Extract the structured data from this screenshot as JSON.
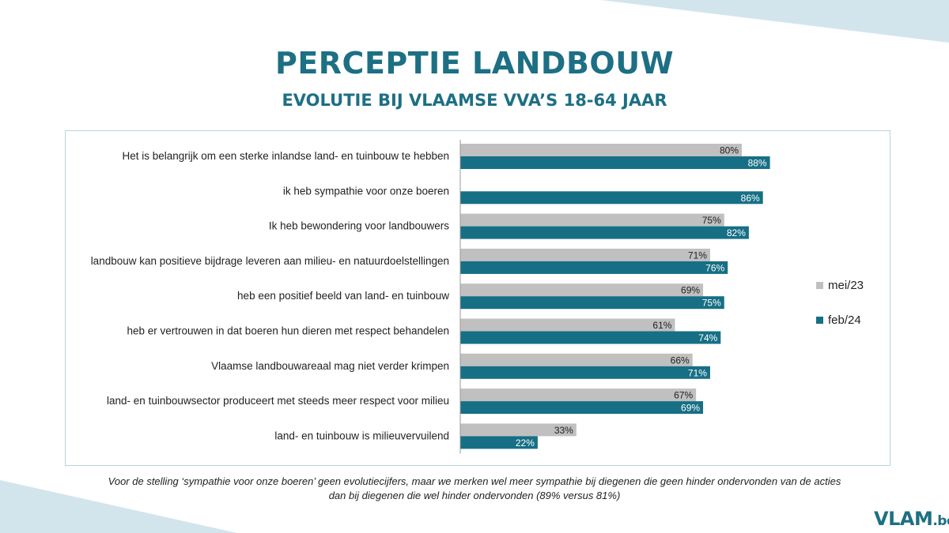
{
  "header": {
    "title": "PERCEPTIE LANDBOUW",
    "subtitle": "EVOLUTIE BIJ VLAAMSE VVA’S 18-64 JAAR"
  },
  "colors": {
    "mei23": "#c0c0c0",
    "feb24": "#166f85",
    "accent": "#1d6f84",
    "decor": "#d3e5ec"
  },
  "chart_data": {
    "type": "bar",
    "orientation": "horizontal",
    "categories": [
      "Het is belangrijk om een sterke inlandse land- en tuinbouw te hebben",
      "ik heb sympathie voor onze boeren",
      "Ik heb bewondering voor landbouwers",
      "landbouw kan positieve bijdrage leveren aan milieu- en natuurdoelstellingen",
      "heb een positief beeld van land- en tuinbouw",
      "heb er vertrouwen in dat boeren hun dieren met respect behandelen",
      "Vlaamse landbouwareaal mag niet verder krimpen",
      "land- en tuinbouwsector produceert met steeds meer respect voor milieu",
      "land- en tuinbouw is milieuvervuilend"
    ],
    "series": [
      {
        "name": "mei/23",
        "values": [
          80,
          null,
          75,
          71,
          69,
          61,
          66,
          67,
          33
        ],
        "labels": [
          "80%",
          "",
          "75%",
          "71%",
          "69%",
          "61%",
          "66%",
          "67%",
          "33%"
        ]
      },
      {
        "name": "feb/24",
        "values": [
          88,
          86,
          82,
          76,
          75,
          74,
          71,
          69,
          22
        ],
        "labels": [
          "88%",
          "86%",
          "82%",
          "76%",
          "75%",
          "74%",
          "71%",
          "69%",
          "22%"
        ]
      }
    ],
    "xlim": [
      0,
      100
    ],
    "legend_position": "right",
    "grid": false
  },
  "legend": {
    "mei23": "mei/23",
    "feb24": "feb/24"
  },
  "footnote": {
    "line1": "Voor de stelling ‘sympathie voor onze boeren’ geen evolutiecijfers, maar we merken wel meer sympathie bij diegenen die geen hinder ondervonden van de acties",
    "line2": "dan bij diegenen die wel hinder ondervonden (89% versus 81%)"
  },
  "logo": {
    "main": "VLAM",
    "suffix": ".be"
  }
}
